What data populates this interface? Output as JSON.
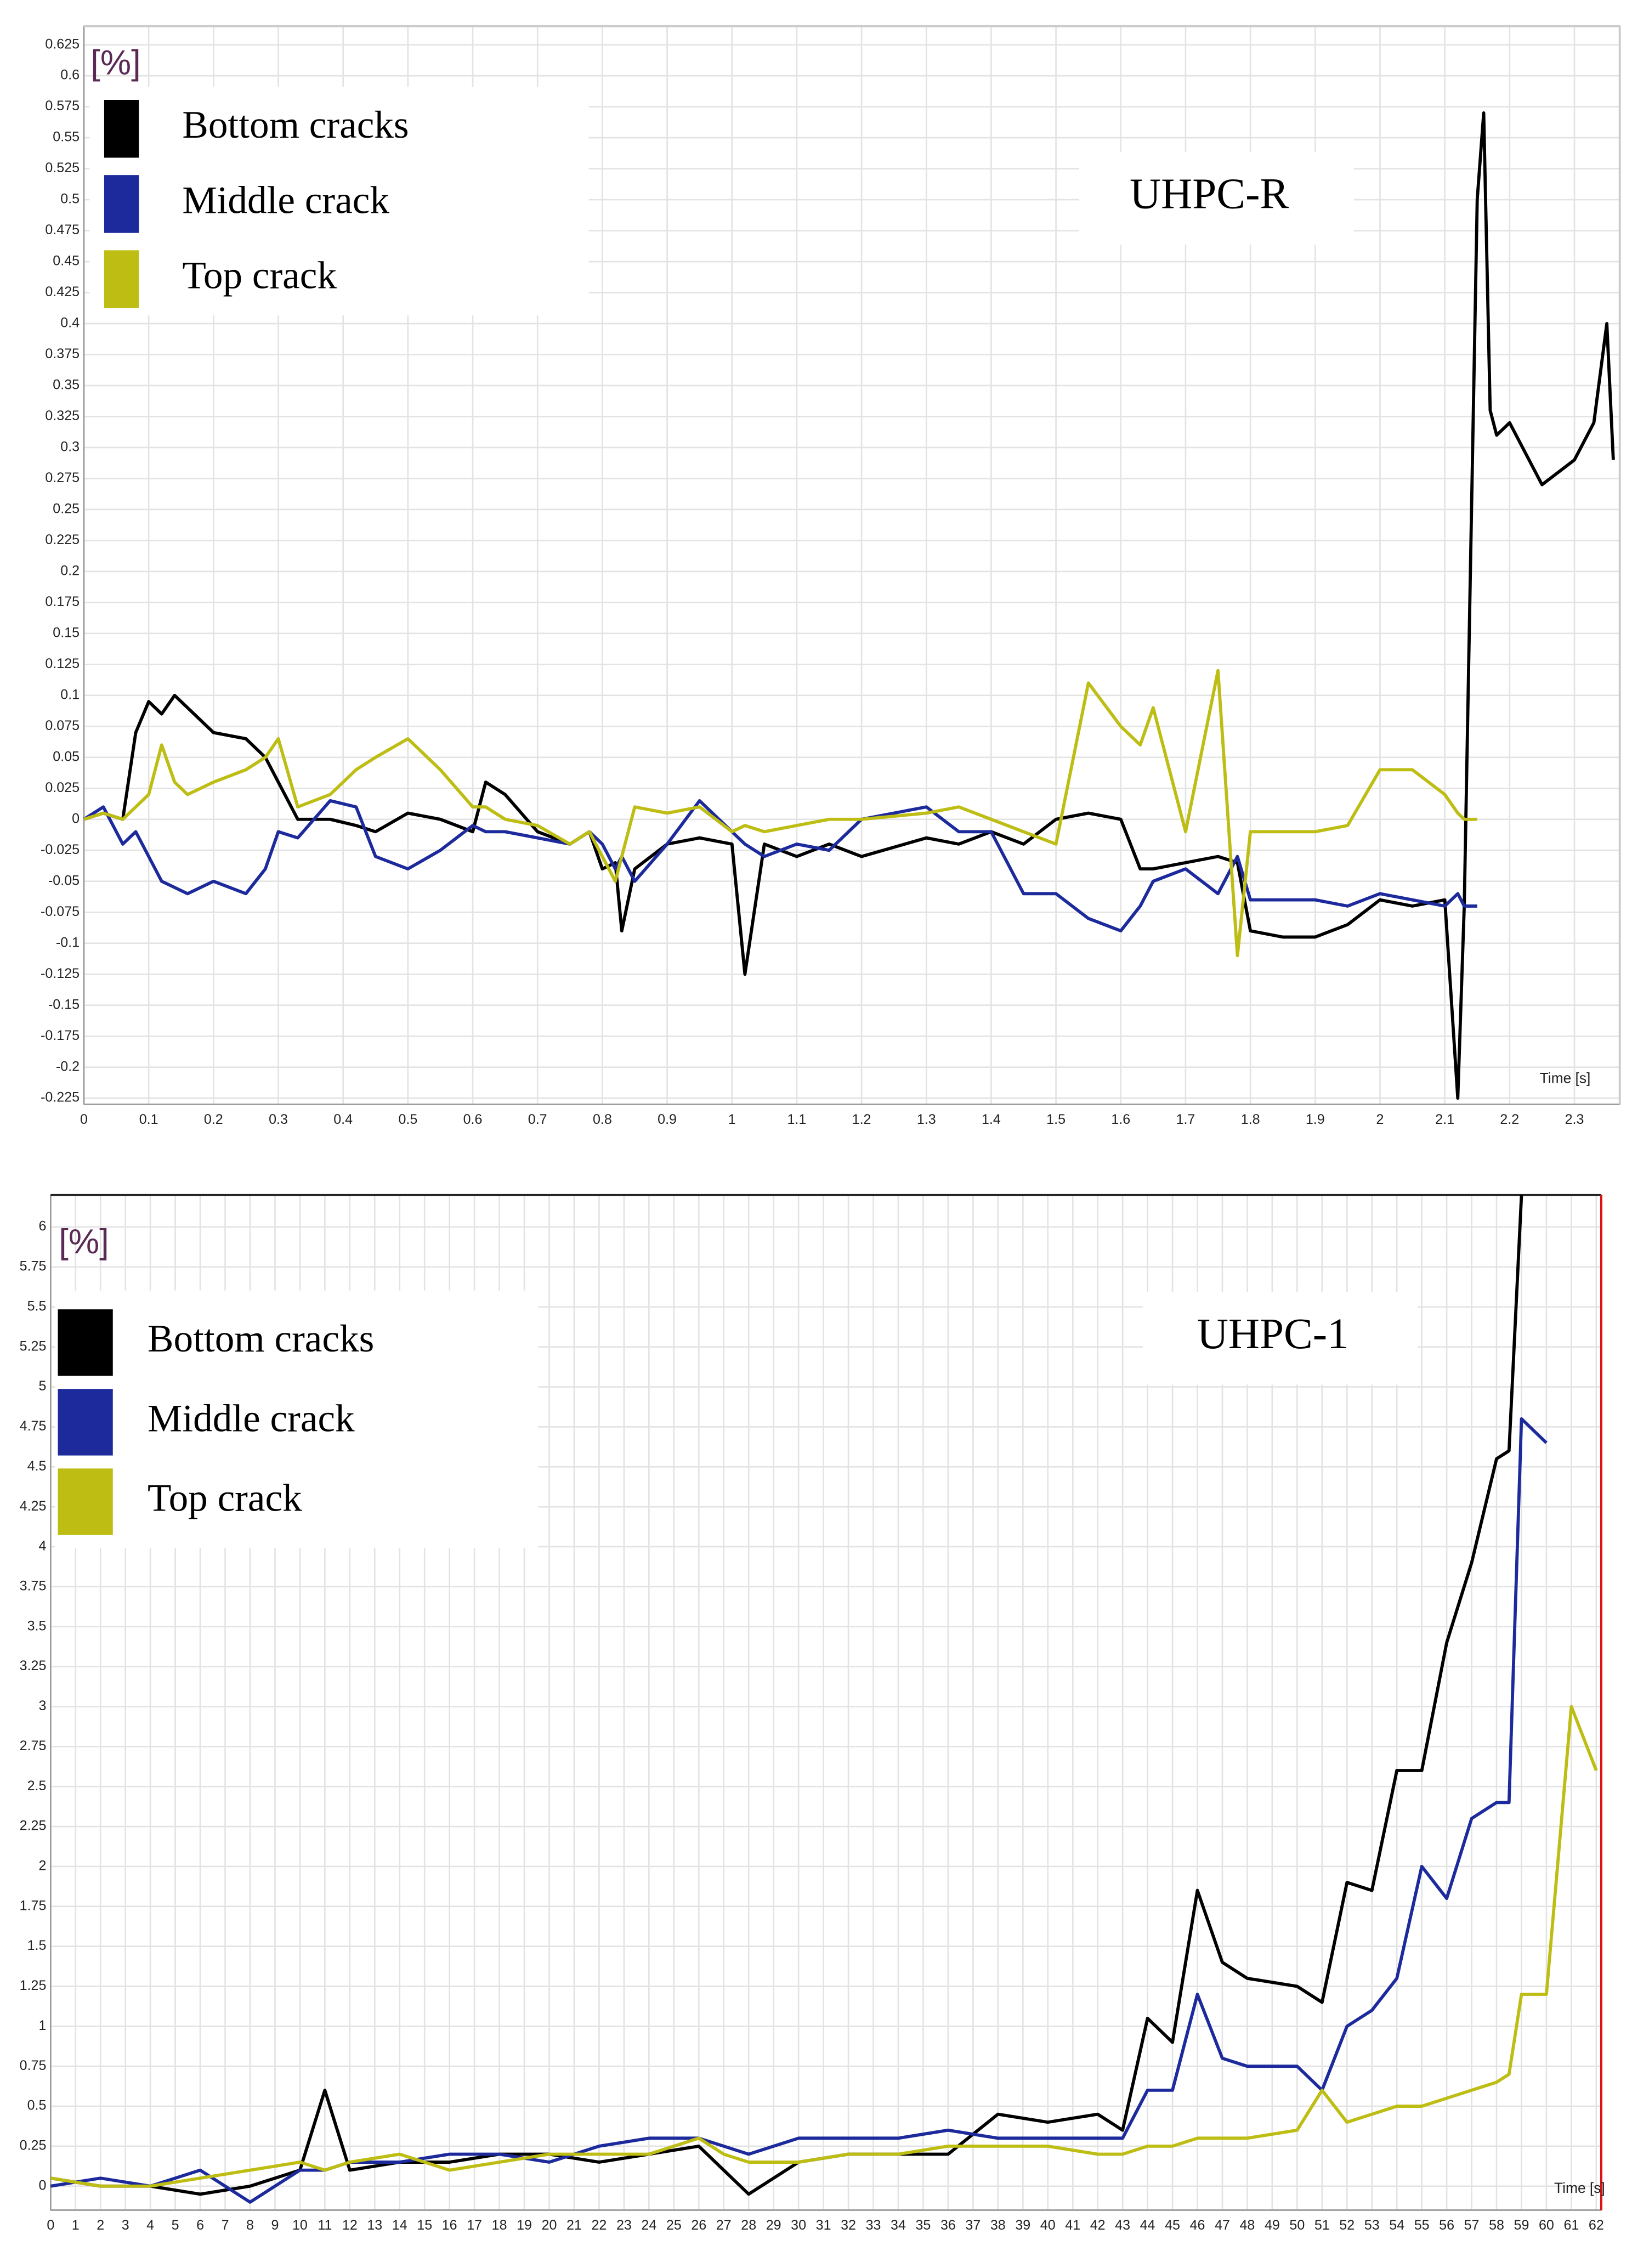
{
  "chart_data": [
    {
      "type": "line",
      "annotation": "UHPC-R",
      "ylabel": "[%]",
      "xlabel": "Time [s]",
      "grid": true,
      "legend": "upper left",
      "x": [
        0,
        0.03,
        0.06,
        0.08,
        0.1,
        0.12,
        0.14,
        0.16,
        0.2,
        0.25,
        0.28,
        0.3,
        0.33,
        0.38,
        0.42,
        0.45,
        0.5,
        0.55,
        0.6,
        0.62,
        0.65,
        0.7,
        0.75,
        0.78,
        0.8,
        0.82,
        0.83,
        0.85,
        0.9,
        0.95,
        1.0,
        1.02,
        1.05,
        1.1,
        1.15,
        1.2,
        1.3,
        1.35,
        1.4,
        1.45,
        1.5,
        1.55,
        1.6,
        1.63,
        1.65,
        1.7,
        1.75,
        1.78,
        1.8,
        1.85,
        1.9,
        1.95,
        2.0,
        2.05,
        2.1,
        2.12,
        2.13,
        2.15,
        2.16,
        2.17,
        2.18,
        2.2,
        2.25,
        2.3,
        2.33,
        2.35,
        2.36
      ],
      "series": [
        {
          "name": "Bottom cracks",
          "color": "#000000",
          "values": [
            0,
            0.005,
            0,
            0.07,
            0.095,
            0.085,
            0.1,
            0.09,
            0.07,
            0.065,
            0.05,
            0.03,
            0,
            0,
            -0.005,
            -0.01,
            0.005,
            0,
            -0.01,
            0.03,
            0.02,
            -0.01,
            -0.02,
            -0.01,
            -0.04,
            -0.035,
            -0.09,
            -0.04,
            -0.02,
            -0.015,
            -0.02,
            -0.125,
            -0.02,
            -0.03,
            -0.02,
            -0.03,
            -0.015,
            -0.02,
            -0.01,
            -0.02,
            0,
            0.005,
            0,
            -0.04,
            -0.04,
            -0.035,
            -0.03,
            -0.035,
            -0.09,
            -0.095,
            -0.095,
            -0.085,
            -0.065,
            -0.07,
            -0.065,
            -0.225,
            -0.07,
            0.5,
            0.57,
            0.33,
            0.31,
            0.32,
            0.27,
            0.29,
            0.32,
            0.4,
            0.29
          ]
        },
        {
          "name": "Middle crack",
          "color": "#1c2a9c",
          "values": [
            0,
            0.01,
            -0.02,
            -0.01,
            -0.03,
            -0.05,
            -0.055,
            -0.06,
            -0.05,
            -0.06,
            -0.04,
            -0.01,
            -0.015,
            0.015,
            0.01,
            -0.03,
            -0.04,
            -0.025,
            -0.005,
            -0.01,
            -0.01,
            -0.015,
            -0.02,
            -0.01,
            -0.02,
            -0.04,
            -0.03,
            -0.05,
            -0.02,
            0.015,
            -0.01,
            -0.02,
            -0.03,
            -0.02,
            -0.025,
            0,
            0.01,
            -0.01,
            -0.01,
            -0.06,
            -0.06,
            -0.08,
            -0.09,
            -0.07,
            -0.05,
            -0.04,
            -0.06,
            -0.03,
            -0.065,
            -0.065,
            -0.065,
            -0.07,
            -0.06,
            -0.065,
            -0.07,
            -0.06,
            -0.07,
            -0.07,
            null,
            null,
            null,
            null,
            null,
            null,
            null,
            null,
            null
          ]
        },
        {
          "name": "Top crack",
          "color": "#bdbd14",
          "values": [
            0,
            0.005,
            0,
            0.01,
            0.02,
            0.06,
            0.03,
            0.02,
            0.03,
            0.04,
            0.05,
            0.065,
            0.01,
            0.02,
            0.04,
            0.05,
            0.065,
            0.04,
            0.01,
            0.01,
            0,
            -0.005,
            -0.02,
            -0.01,
            -0.03,
            -0.05,
            -0.03,
            0.01,
            0.005,
            0.01,
            -0.01,
            -0.005,
            -0.01,
            -0.005,
            0,
            0,
            0.005,
            0.01,
            0,
            -0.01,
            -0.02,
            0.11,
            0.075,
            0.06,
            0.09,
            -0.01,
            0.12,
            -0.11,
            -0.01,
            -0.01,
            -0.01,
            -0.005,
            0.04,
            0.04,
            0.02,
            0.005,
            0,
            0,
            null,
            null,
            null,
            null,
            null,
            null,
            null,
            null,
            null
          ]
        }
      ],
      "xlim": [
        0,
        2.37
      ],
      "xticks": [
        0,
        0.1,
        0.2,
        0.3,
        0.4,
        0.5,
        0.6,
        0.7,
        0.8,
        0.9,
        1,
        1.1,
        1.2,
        1.3,
        1.4,
        1.5,
        1.6,
        1.7,
        1.8,
        1.9,
        2,
        2.1,
        2.2,
        2.3
      ],
      "ylim": [
        -0.23,
        0.64
      ],
      "yticks": [
        -0.225,
        -0.2,
        -0.175,
        -0.15,
        -0.125,
        -0.1,
        -0.075,
        -0.05,
        -0.025,
        0,
        0.025,
        0.05,
        0.075,
        0.1,
        0.125,
        0.15,
        0.175,
        0.2,
        0.225,
        0.25,
        0.275,
        0.3,
        0.325,
        0.35,
        0.375,
        0.4,
        0.425,
        0.45,
        0.475,
        0.5,
        0.525,
        0.55,
        0.575,
        0.6,
        0.625
      ]
    },
    {
      "type": "line",
      "annotation": "UHPC-1",
      "ylabel": "[%]",
      "xlabel": "Time [s]",
      "grid": true,
      "legend": "upper left",
      "x": [
        0,
        2,
        4,
        6,
        8,
        10,
        11,
        12,
        14,
        16,
        18,
        20,
        22,
        24,
        26,
        27,
        28,
        30,
        32,
        34,
        36,
        38,
        40,
        42,
        43,
        44,
        45,
        46,
        47,
        48,
        50,
        51,
        52,
        53,
        54,
        55,
        56,
        57,
        58,
        58.5,
        59,
        60,
        61,
        62
      ],
      "series": [
        {
          "name": "Bottom cracks",
          "color": "#000000",
          "values": [
            0.05,
            0,
            0,
            -0.05,
            0,
            0.1,
            0.6,
            0.1,
            0.15,
            0.15,
            0.2,
            0.2,
            0.15,
            0.2,
            0.25,
            0.1,
            -0.05,
            0.15,
            0.2,
            0.2,
            0.2,
            0.45,
            0.4,
            0.45,
            0.35,
            1.05,
            0.9,
            1.85,
            1.4,
            1.3,
            1.25,
            1.15,
            1.9,
            1.85,
            2.6,
            2.6,
            3.4,
            3.9,
            4.55,
            4.6,
            6.2,
            null,
            null,
            null
          ]
        },
        {
          "name": "Middle crack",
          "color": "#1c2a9c",
          "values": [
            0,
            0.05,
            0,
            0.1,
            -0.1,
            0.1,
            0.1,
            0.15,
            0.15,
            0.2,
            0.2,
            0.15,
            0.25,
            0.3,
            0.3,
            0.25,
            0.2,
            0.3,
            0.3,
            0.3,
            0.35,
            0.3,
            0.3,
            0.3,
            0.3,
            0.6,
            0.6,
            1.2,
            0.8,
            0.75,
            0.75,
            0.6,
            1.0,
            1.1,
            1.3,
            2.0,
            1.8,
            2.3,
            2.4,
            2.4,
            4.8,
            4.65,
            null,
            null
          ]
        },
        {
          "name": "Top crack",
          "color": "#bdbd14",
          "values": [
            0.05,
            0,
            0,
            0.05,
            0.1,
            0.15,
            0.1,
            0.15,
            0.2,
            0.1,
            0.15,
            0.2,
            0.2,
            0.2,
            0.3,
            0.2,
            0.15,
            0.15,
            0.2,
            0.2,
            0.25,
            0.25,
            0.25,
            0.2,
            0.2,
            0.25,
            0.25,
            0.3,
            0.3,
            0.3,
            0.35,
            0.6,
            0.4,
            0.45,
            0.5,
            0.5,
            0.55,
            0.6,
            0.65,
            0.7,
            1.2,
            1.2,
            3.0,
            2.6
          ]
        }
      ],
      "xlim": [
        0,
        62.2
      ],
      "xticks": [
        0,
        1,
        2,
        3,
        4,
        5,
        6,
        7,
        8,
        9,
        10,
        11,
        12,
        13,
        14,
        15,
        16,
        17,
        18,
        19,
        20,
        21,
        22,
        23,
        24,
        25,
        26,
        27,
        28,
        29,
        30,
        31,
        32,
        33,
        34,
        35,
        36,
        37,
        38,
        39,
        40,
        41,
        42,
        43,
        44,
        45,
        46,
        47,
        48,
        49,
        50,
        51,
        52,
        53,
        54,
        55,
        56,
        57,
        58,
        59,
        60,
        61,
        62
      ],
      "ylim": [
        -0.15,
        6.2
      ],
      "yticks": [
        0,
        0.25,
        0.5,
        0.75,
        1,
        1.25,
        1.5,
        1.75,
        2,
        2.25,
        2.5,
        2.75,
        3,
        3.25,
        3.5,
        3.75,
        4,
        4.25,
        4.5,
        4.75,
        5,
        5.25,
        5.5,
        5.75,
        6
      ]
    }
  ]
}
